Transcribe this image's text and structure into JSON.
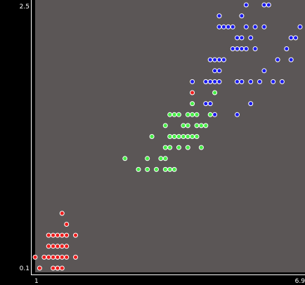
{
  "chart_data": {
    "type": "scatter",
    "title": "",
    "xlabel": "",
    "ylabel": "",
    "xlim": [
      1,
      6.9
    ],
    "ylim": [
      0.1,
      2.5
    ],
    "xticks": [
      "1",
      "6.9"
    ],
    "yticks": [
      "2.5",
      "0.1"
    ],
    "grid": false,
    "legend": "none",
    "colors": {
      "plot_background": "#5b5656",
      "page_background": "#000000",
      "axis_text": "#ffffff",
      "marker_edge": "#ffffff"
    },
    "series": [
      {
        "color": "#ee1c1c",
        "points": [
          [
            1.0,
            0.2
          ],
          [
            1.1,
            0.1
          ],
          [
            1.2,
            0.2
          ],
          [
            1.3,
            0.2
          ],
          [
            1.3,
            0.4
          ],
          [
            1.3,
            0.3
          ],
          [
            1.4,
            0.2
          ],
          [
            1.4,
            0.3
          ],
          [
            1.4,
            0.1
          ],
          [
            1.4,
            0.4
          ],
          [
            1.5,
            0.2
          ],
          [
            1.5,
            0.3
          ],
          [
            1.5,
            0.1
          ],
          [
            1.5,
            0.4
          ],
          [
            1.6,
            0.2
          ],
          [
            1.6,
            0.3
          ],
          [
            1.6,
            0.4
          ],
          [
            1.6,
            0.6
          ],
          [
            1.5,
            0.1
          ],
          [
            1.7,
            0.2
          ],
          [
            1.7,
            0.5
          ],
          [
            1.7,
            0.4
          ],
          [
            1.9,
            0.2
          ],
          [
            1.9,
            0.4
          ],
          [
            1.7,
            0.3
          ],
          [
            1.6,
            0.1
          ],
          [
            1.5,
            0.2
          ],
          [
            4.5,
            1.7
          ]
        ]
      },
      {
        "color": "#44ee44",
        "points": [
          [
            3.0,
            1.1
          ],
          [
            3.3,
            1.0
          ],
          [
            3.5,
            1.0
          ],
          [
            3.7,
            1.0
          ],
          [
            3.9,
            1.0
          ],
          [
            3.5,
            1.1
          ],
          [
            3.6,
            1.3
          ],
          [
            3.8,
            1.1
          ],
          [
            3.9,
            1.1
          ],
          [
            3.9,
            1.4
          ],
          [
            3.9,
            1.2
          ],
          [
            4.0,
            1.0
          ],
          [
            4.0,
            1.2
          ],
          [
            4.0,
            1.3
          ],
          [
            4.0,
            1.5
          ],
          [
            4.1,
            1.0
          ],
          [
            4.1,
            1.3
          ],
          [
            4.2,
            1.2
          ],
          [
            4.2,
            1.3
          ],
          [
            4.2,
            1.5
          ],
          [
            4.3,
            1.3
          ],
          [
            4.3,
            1.4
          ],
          [
            4.4,
            1.2
          ],
          [
            4.4,
            1.3
          ],
          [
            4.4,
            1.4
          ],
          [
            4.5,
            1.3
          ],
          [
            4.5,
            1.5
          ],
          [
            4.5,
            1.6
          ],
          [
            4.6,
            1.3
          ],
          [
            4.6,
            1.4
          ],
          [
            4.6,
            1.5
          ],
          [
            4.7,
            1.2
          ],
          [
            4.7,
            1.4
          ],
          [
            4.8,
            1.4
          ],
          [
            4.8,
            1.8
          ],
          [
            4.9,
            1.5
          ],
          [
            5.0,
            1.7
          ],
          [
            4.1,
            1.5
          ],
          [
            4.4,
            1.5
          ]
        ]
      },
      {
        "color": "#1a1aee",
        "points": [
          [
            4.5,
            1.8
          ],
          [
            4.8,
            1.6
          ],
          [
            4.8,
            1.8
          ],
          [
            4.9,
            1.6
          ],
          [
            4.9,
            1.8
          ],
          [
            4.9,
            2.0
          ],
          [
            5.0,
            1.5
          ],
          [
            5.0,
            1.9
          ],
          [
            5.0,
            2.0
          ],
          [
            5.0,
            1.8
          ],
          [
            5.1,
            1.9
          ],
          [
            5.1,
            2.0
          ],
          [
            5.1,
            2.3
          ],
          [
            5.1,
            2.4
          ],
          [
            5.1,
            1.8
          ],
          [
            5.2,
            2.3
          ],
          [
            5.2,
            2.0
          ],
          [
            5.3,
            2.3
          ],
          [
            5.4,
            2.1
          ],
          [
            5.4,
            2.3
          ],
          [
            5.5,
            2.1
          ],
          [
            5.5,
            1.8
          ],
          [
            5.5,
            2.2
          ],
          [
            5.5,
            1.5
          ],
          [
            5.6,
            2.1
          ],
          [
            5.6,
            2.2
          ],
          [
            5.6,
            2.4
          ],
          [
            5.6,
            1.8
          ],
          [
            5.7,
            2.1
          ],
          [
            5.7,
            2.3
          ],
          [
            5.7,
            2.5
          ],
          [
            5.8,
            1.8
          ],
          [
            5.8,
            2.2
          ],
          [
            5.9,
            2.1
          ],
          [
            5.9,
            2.3
          ],
          [
            6.0,
            1.8
          ],
          [
            6.1,
            2.3
          ],
          [
            6.1,
            2.5
          ],
          [
            6.1,
            1.9
          ],
          [
            6.3,
            1.8
          ],
          [
            6.4,
            2.0
          ],
          [
            6.6,
            2.1
          ],
          [
            6.7,
            2.2
          ],
          [
            6.7,
            2.0
          ],
          [
            6.9,
            2.3
          ],
          [
            5.8,
            1.6
          ],
          [
            6.2,
            2.5
          ],
          [
            6.5,
            1.8
          ],
          [
            6.8,
            2.2
          ]
        ]
      }
    ]
  }
}
